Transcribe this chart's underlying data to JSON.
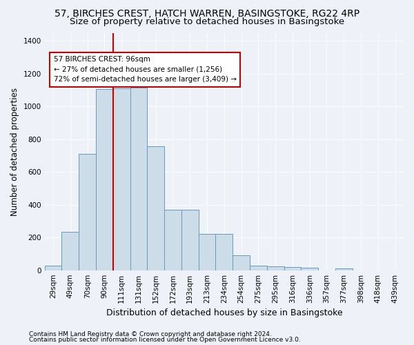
{
  "title_line1": "57, BIRCHES CREST, HATCH WARREN, BASINGSTOKE, RG22 4RP",
  "title_line2": "Size of property relative to detached houses in Basingstoke",
  "xlabel": "Distribution of detached houses by size in Basingstoke",
  "ylabel": "Number of detached properties",
  "bar_labels": [
    "29sqm",
    "49sqm",
    "70sqm",
    "90sqm",
    "111sqm",
    "131sqm",
    "152sqm",
    "172sqm",
    "193sqm",
    "213sqm",
    "234sqm",
    "254sqm",
    "275sqm",
    "295sqm",
    "316sqm",
    "336sqm",
    "357sqm",
    "377sqm",
    "398sqm",
    "418sqm",
    "439sqm"
  ],
  "bar_values": [
    30,
    235,
    710,
    1105,
    1110,
    1115,
    755,
    370,
    370,
    220,
    220,
    90,
    30,
    25,
    20,
    15,
    0,
    10,
    0,
    0,
    0
  ],
  "bar_color": "#ccdce8",
  "bar_edgecolor": "#6699bb",
  "vline_color": "#cc0000",
  "vline_pos": 3.5,
  "ylim": [
    0,
    1450
  ],
  "yticks": [
    0,
    200,
    400,
    600,
    800,
    1000,
    1200,
    1400
  ],
  "annotation_title": "57 BIRCHES CREST: 96sqm",
  "annotation_line1": "← 27% of detached houses are smaller (1,256)",
  "annotation_line2": "72% of semi-detached houses are larger (3,409) →",
  "annotation_box_facecolor": "#ffffff",
  "annotation_box_edgecolor": "#cc0000",
  "footnote1": "Contains HM Land Registry data © Crown copyright and database right 2024.",
  "footnote2": "Contains public sector information licensed under the Open Government Licence v3.0.",
  "background_color": "#eef2f8",
  "grid_color": "#ffffff",
  "title_fontsize": 10,
  "subtitle_fontsize": 9.5,
  "ylabel_fontsize": 8.5,
  "xlabel_fontsize": 9,
  "tick_fontsize": 7.5,
  "annotation_fontsize": 7.5,
  "footnote_fontsize": 6.5
}
